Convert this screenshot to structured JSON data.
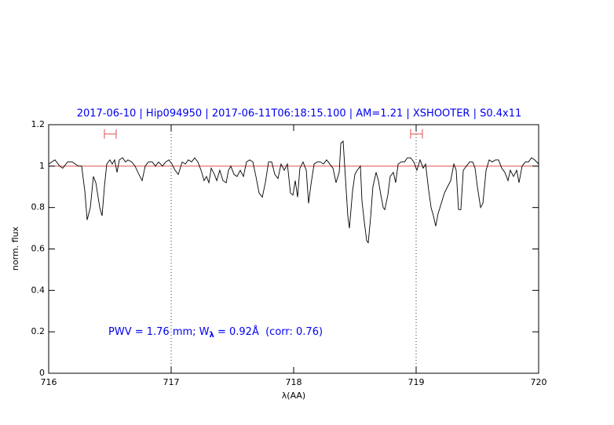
{
  "chart_data": {
    "type": "line",
    "title": "2017-06-10 | Hip094950 | 2017-06-11T06:18:15.100 | AM=1.21 | XSHOOTER | S0.4x11",
    "annotation": [
      "PWV = 1.76 mm; W",
      "λ",
      " = 0.92Å  (corr: 0.76)"
    ],
    "xlabel": "λ(AA)",
    "ylabel": "norm. flux",
    "xlim": [
      716,
      720
    ],
    "ylim": [
      0,
      1.2
    ],
    "xticks": [
      716,
      717,
      718,
      719,
      720
    ],
    "yticks": [
      0,
      0.2,
      0.4,
      0.6,
      0.8,
      1,
      1.2
    ],
    "hline": {
      "value": 1,
      "color": "#e05050"
    },
    "vlines": [
      717,
      719
    ],
    "range_markers": [
      {
        "x": [
          716.455,
          716.551
        ],
        "y": 1.155,
        "color": "#e05050"
      },
      {
        "x": [
          718.955,
          719.051
        ],
        "y": 1.155,
        "color": "#e05050"
      }
    ],
    "series": [
      {
        "color": "#000000",
        "x": [
          716.0,
          716.051,
          716.09,
          716.115,
          716.154,
          716.192,
          716.218,
          716.244,
          716.269,
          716.295,
          716.314,
          716.34,
          716.365,
          716.385,
          716.417,
          716.436,
          716.455,
          716.474,
          716.5,
          716.519,
          716.538,
          716.558,
          716.577,
          716.603,
          716.628,
          716.647,
          716.679,
          716.705,
          716.737,
          716.763,
          716.788,
          716.814,
          716.846,
          716.872,
          716.897,
          716.929,
          716.955,
          716.981,
          717.006,
          717.032,
          717.058,
          717.09,
          717.115,
          717.141,
          717.167,
          717.192,
          717.218,
          717.244,
          717.269,
          717.288,
          717.308,
          717.327,
          717.353,
          717.372,
          717.397,
          717.423,
          717.449,
          717.468,
          717.487,
          717.513,
          717.538,
          717.564,
          717.59,
          717.615,
          717.641,
          717.667,
          717.692,
          717.718,
          717.744,
          717.769,
          717.795,
          717.821,
          717.846,
          717.872,
          717.897,
          717.923,
          717.949,
          717.974,
          717.994,
          718.013,
          718.032,
          718.051,
          718.077,
          718.103,
          718.122,
          718.141,
          718.167,
          718.192,
          718.218,
          718.244,
          718.269,
          718.295,
          718.321,
          718.346,
          718.372,
          718.385,
          718.404,
          718.423,
          718.442,
          718.455,
          718.481,
          718.5,
          718.519,
          718.545,
          718.558,
          718.577,
          718.596,
          718.609,
          718.628,
          718.647,
          718.673,
          718.692,
          718.712,
          718.731,
          718.744,
          718.769,
          718.788,
          718.814,
          718.833,
          718.853,
          718.878,
          718.904,
          718.929,
          718.955,
          718.981,
          719.006,
          719.032,
          719.058,
          719.077,
          719.103,
          719.122,
          719.141,
          719.16,
          719.179,
          719.205,
          719.231,
          719.256,
          719.282,
          719.308,
          719.327,
          719.346,
          719.365,
          719.385,
          719.41,
          719.436,
          719.462,
          719.481,
          719.5,
          719.526,
          719.545,
          719.571,
          719.596,
          719.622,
          719.647,
          719.673,
          719.699,
          719.724,
          719.75,
          719.769,
          719.795,
          719.821,
          719.84,
          719.865,
          719.891,
          719.917,
          719.942,
          719.968,
          720.0
        ],
        "values": [
          1.01,
          1.03,
          1.0,
          0.99,
          1.02,
          1.02,
          1.01,
          1.0,
          1.0,
          0.88,
          0.74,
          0.8,
          0.95,
          0.92,
          0.8,
          0.76,
          0.9,
          1.01,
          1.03,
          1.01,
          1.03,
          0.97,
          1.03,
          1.04,
          1.02,
          1.03,
          1.02,
          1.0,
          0.96,
          0.93,
          1.0,
          1.02,
          1.02,
          1.0,
          1.02,
          1.0,
          1.02,
          1.03,
          1.01,
          0.98,
          0.96,
          1.02,
          1.01,
          1.03,
          1.02,
          1.04,
          1.02,
          0.98,
          0.93,
          0.95,
          0.92,
          0.99,
          0.96,
          0.93,
          0.98,
          0.93,
          0.92,
          0.98,
          1.0,
          0.96,
          0.95,
          0.98,
          0.95,
          1.02,
          1.03,
          1.02,
          0.95,
          0.87,
          0.85,
          0.92,
          1.02,
          1.02,
          0.96,
          0.94,
          1.01,
          0.98,
          1.01,
          0.87,
          0.86,
          0.93,
          0.85,
          0.99,
          1.02,
          0.98,
          0.82,
          0.91,
          1.01,
          1.02,
          1.02,
          1.01,
          1.03,
          1.01,
          0.99,
          0.92,
          0.97,
          1.11,
          1.12,
          0.94,
          0.76,
          0.7,
          0.88,
          0.96,
          0.98,
          1.0,
          0.83,
          0.73,
          0.64,
          0.63,
          0.75,
          0.9,
          0.97,
          0.93,
          0.86,
          0.8,
          0.79,
          0.86,
          0.95,
          0.97,
          0.92,
          1.01,
          1.02,
          1.02,
          1.04,
          1.04,
          1.02,
          0.98,
          1.03,
          0.99,
          1.01,
          0.88,
          0.8,
          0.76,
          0.71,
          0.77,
          0.82,
          0.87,
          0.9,
          0.93,
          1.01,
          0.98,
          0.79,
          0.79,
          0.98,
          1.0,
          1.02,
          1.02,
          0.99,
          0.9,
          0.8,
          0.82,
          0.98,
          1.03,
          1.02,
          1.03,
          1.03,
          0.99,
          0.97,
          0.93,
          0.98,
          0.95,
          0.98,
          0.92,
          1.0,
          1.02,
          1.02,
          1.04,
          1.03,
          1.01
        ]
      }
    ]
  }
}
